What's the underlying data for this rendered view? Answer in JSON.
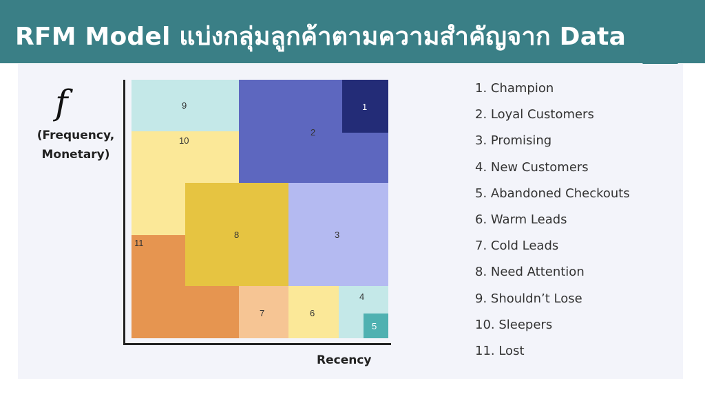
{
  "header": {
    "title": "RFM Model แบ่งกลุ่มลูกค้าตามความสำคัญจาก Data"
  },
  "axes": {
    "y_symbol": "f",
    "y_label_line1": "(Frequency,",
    "y_label_line2": "Monetary)",
    "x_label": "Recency"
  },
  "segments": [
    {
      "id": "9",
      "color": "#c4e8e8"
    },
    {
      "id": "2",
      "color": "#5d67bf"
    },
    {
      "id": "1",
      "color": "#232c77"
    },
    {
      "id": "10",
      "color": "#fbe898"
    },
    {
      "id": "8",
      "color": "#e6c441"
    },
    {
      "id": "3",
      "color": "#b4baf1"
    },
    {
      "id": "11",
      "color": "#e69550"
    },
    {
      "id": "7",
      "color": "#f6c594"
    },
    {
      "id": "6",
      "color": "#fbe898"
    },
    {
      "id": "4",
      "color": "#c4e8e8"
    },
    {
      "id": "5",
      "color": "#4fb1b1"
    }
  ],
  "legend": [
    "1.  Champion",
    "2.  Loyal Customers",
    "3.  Promising",
    "4.  New Customers",
    "5.  Abandoned Checkouts",
    "6.  Warm Leads",
    "7.  Cold Leads",
    "8.  Need Attention",
    "9.  Shouldn’t Lose",
    "10. Sleepers",
    "11. Lost"
  ]
}
